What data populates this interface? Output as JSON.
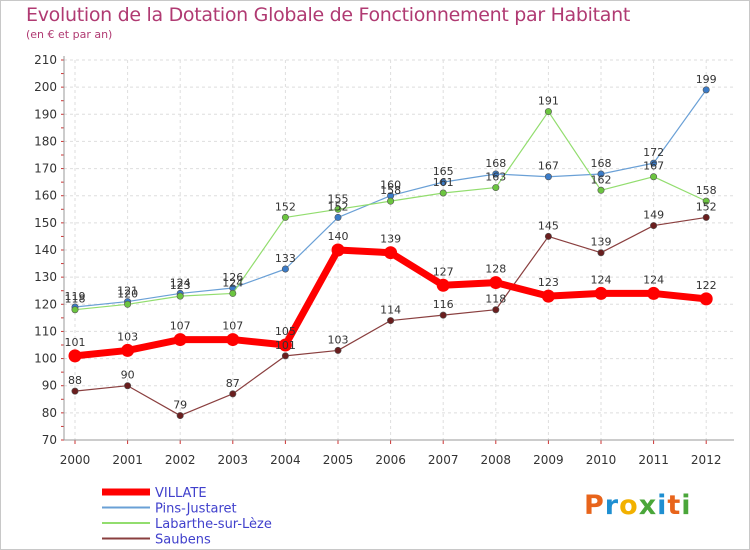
{
  "header": {
    "title": "Evolution de la Dotation Globale de Fonctionnement par Habitant",
    "subtitle": "(en € et par an)"
  },
  "logo": {
    "letters": [
      "P",
      "r",
      "o",
      "x",
      "i",
      "t",
      "i"
    ],
    "colors": [
      "#e8641b",
      "#1f8fd1",
      "#f2b100",
      "#4aa63a",
      "#1f8fd1",
      "#e8641b",
      "#4aa63a"
    ]
  },
  "chart_data": {
    "type": "line",
    "title": "Evolution de la Dotation Globale de Fonctionnement par Habitant",
    "subtitle": "(en € et par an)",
    "xlabel": "",
    "ylabel": "",
    "x": [
      "2000",
      "2001",
      "2002",
      "2003",
      "2004",
      "2005",
      "2006",
      "2007",
      "2008",
      "2009",
      "2010",
      "2011",
      "2012"
    ],
    "ylim": [
      70,
      210
    ],
    "yticks": [
      70,
      80,
      90,
      100,
      110,
      120,
      130,
      140,
      150,
      160,
      170,
      180,
      190,
      200,
      210
    ],
    "grid": true,
    "legend": "bottom-left",
    "series": [
      {
        "name": "Pins-Justaret",
        "color": "#6aa0d6",
        "point": "#3a7bc8",
        "width": 1.2,
        "values": [
          119,
          121,
          124,
          126,
          133,
          152,
          160,
          165,
          168,
          167,
          168,
          172,
          199
        ]
      },
      {
        "name": "Labarthe-sur-Lèze",
        "color": "#92dd6e",
        "point": "#6cc540",
        "width": 1.2,
        "values": [
          118,
          120,
          123,
          124,
          152,
          155,
          158,
          161,
          163,
          191,
          162,
          167,
          158
        ]
      },
      {
        "name": "Saubens",
        "color": "#8a3f3f",
        "point": "#6a1e1e",
        "width": 1.2,
        "values": [
          88,
          90,
          79,
          87,
          101,
          103,
          114,
          116,
          118,
          145,
          139,
          149,
          152
        ]
      },
      {
        "name": "VILLATE",
        "color": "#ff0000",
        "point": "#ff0000",
        "width": 7,
        "values": [
          101,
          103,
          107,
          107,
          105,
          140,
          139,
          127,
          128,
          123,
          124,
          124,
          122
        ]
      }
    ],
    "legend_order": [
      "VILLATE",
      "Pins-Justaret",
      "Labarthe-sur-Lèze",
      "Saubens"
    ]
  }
}
